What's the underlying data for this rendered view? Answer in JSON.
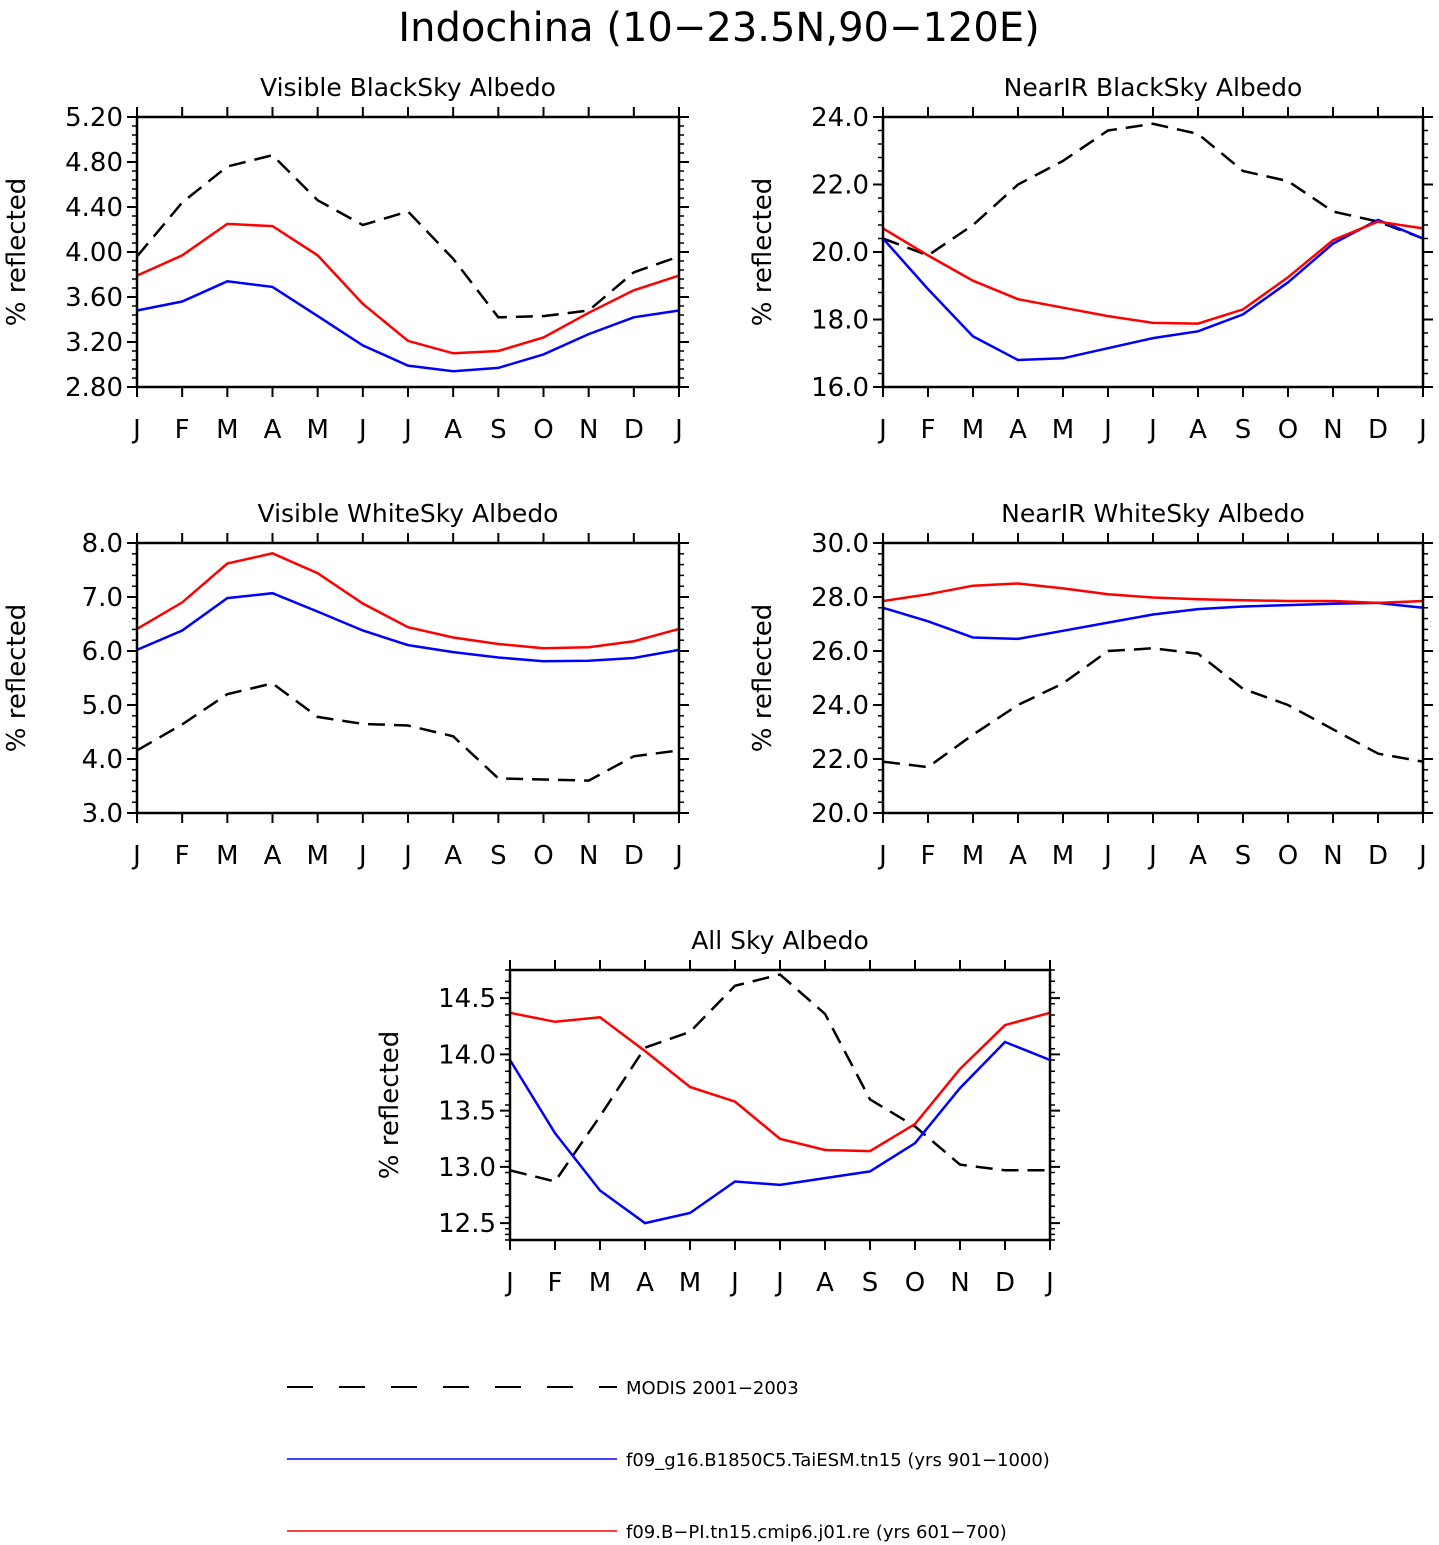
{
  "page_title": "Indochina (10−23.5N,90−120E)",
  "legend": [
    {
      "label": "MODIS 2001−2003",
      "color": "#000000",
      "dash": true
    },
    {
      "label": "f09_g16.B1850C5.TaiESM.tn15 (yrs 901−1000)",
      "color": "#0000ff",
      "dash": false
    },
    {
      "label": "f09.B−PI.tn15.cmip6.j01.re (yrs 601−700)",
      "color": "#ff0000",
      "dash": false
    }
  ],
  "chart_data": [
    {
      "type": "line",
      "title": "Visible BlackSky Albedo",
      "xlabel": "",
      "ylabel": "% reflected",
      "categories": [
        "J",
        "F",
        "M",
        "A",
        "M",
        "J",
        "J",
        "A",
        "S",
        "O",
        "N",
        "D",
        "J"
      ],
      "ylim": [
        2.8,
        5.2
      ],
      "yticks": [
        "2.80",
        "3.20",
        "3.60",
        "4.00",
        "4.40",
        "4.80",
        "5.20"
      ],
      "series": [
        {
          "name": "MODIS 2001−2003",
          "color": "#000000",
          "dash": true,
          "values": [
            3.96,
            4.44,
            4.76,
            4.86,
            4.46,
            4.24,
            4.36,
            3.94,
            3.42,
            3.43,
            3.48,
            3.82,
            3.96
          ]
        },
        {
          "name": "f09_g16.B1850C5.TaiESM.tn15 (yrs 901−1000)",
          "color": "#0000ff",
          "dash": false,
          "values": [
            3.48,
            3.56,
            3.74,
            3.69,
            3.43,
            3.17,
            2.99,
            2.94,
            2.97,
            3.09,
            3.27,
            3.42,
            3.48
          ]
        },
        {
          "name": "f09.B−PI.tn15.cmip6.j01.re (yrs 601−700)",
          "color": "#ff0000",
          "dash": false,
          "values": [
            3.79,
            3.97,
            4.25,
            4.23,
            3.97,
            3.54,
            3.21,
            3.1,
            3.12,
            3.24,
            3.46,
            3.66,
            3.79
          ]
        }
      ]
    },
    {
      "type": "line",
      "title": "NearIR BlackSky Albedo",
      "xlabel": "",
      "ylabel": "% reflected",
      "categories": [
        "J",
        "F",
        "M",
        "A",
        "M",
        "J",
        "J",
        "A",
        "S",
        "O",
        "N",
        "D",
        "J"
      ],
      "ylim": [
        16.0,
        24.0
      ],
      "yticks": [
        "16.0",
        "18.0",
        "20.0",
        "22.0",
        "24.0"
      ],
      "series": [
        {
          "name": "MODIS 2001−2003",
          "color": "#000000",
          "dash": true,
          "values": [
            20.4,
            19.9,
            20.8,
            22.0,
            22.7,
            23.6,
            23.8,
            23.5,
            22.4,
            22.1,
            21.2,
            20.9,
            20.4
          ]
        },
        {
          "name": "f09_g16.B1850C5.TaiESM.tn15 (yrs 901−1000)",
          "color": "#0000ff",
          "dash": false,
          "values": [
            20.4,
            18.9,
            17.5,
            16.8,
            16.85,
            17.15,
            17.45,
            17.65,
            18.15,
            19.1,
            20.25,
            20.95,
            20.4
          ]
        },
        {
          "name": "f09.B−PI.tn15.cmip6.j01.re (yrs 601−700)",
          "color": "#ff0000",
          "dash": false,
          "values": [
            20.7,
            19.9,
            19.15,
            18.6,
            18.35,
            18.1,
            17.9,
            17.88,
            18.3,
            19.25,
            20.35,
            20.9,
            20.7
          ]
        }
      ]
    },
    {
      "type": "line",
      "title": "Visible WhiteSky Albedo",
      "xlabel": "",
      "ylabel": "% reflected",
      "categories": [
        "J",
        "F",
        "M",
        "A",
        "M",
        "J",
        "J",
        "A",
        "S",
        "O",
        "N",
        "D",
        "J"
      ],
      "ylim": [
        3.0,
        8.0
      ],
      "yticks": [
        "3.0",
        "4.0",
        "5.0",
        "6.0",
        "7.0",
        "8.0"
      ],
      "series": [
        {
          "name": "MODIS 2001−2003",
          "color": "#000000",
          "dash": true,
          "values": [
            4.16,
            4.64,
            5.2,
            5.4,
            4.78,
            4.65,
            4.62,
            4.42,
            3.64,
            3.62,
            3.6,
            4.05,
            4.16
          ]
        },
        {
          "name": "f09_g16.B1850C5.TaiESM.tn15 (yrs 901−1000)",
          "color": "#0000ff",
          "dash": false,
          "values": [
            6.02,
            6.38,
            6.98,
            7.07,
            6.73,
            6.38,
            6.11,
            5.98,
            5.88,
            5.81,
            5.82,
            5.87,
            6.02
          ]
        },
        {
          "name": "f09.B−PI.tn15.cmip6.j01.re (yrs 601−700)",
          "color": "#ff0000",
          "dash": false,
          "values": [
            6.41,
            6.9,
            7.62,
            7.81,
            7.44,
            6.88,
            6.44,
            6.25,
            6.13,
            6.05,
            6.07,
            6.18,
            6.41
          ]
        }
      ]
    },
    {
      "type": "line",
      "title": "NearIR WhiteSky Albedo",
      "xlabel": "",
      "ylabel": "% reflected",
      "categories": [
        "J",
        "F",
        "M",
        "A",
        "M",
        "J",
        "J",
        "A",
        "S",
        "O",
        "N",
        "D",
        "J"
      ],
      "ylim": [
        20.0,
        30.0
      ],
      "yticks": [
        "20.0",
        "22.0",
        "24.0",
        "26.0",
        "28.0",
        "30.0"
      ],
      "series": [
        {
          "name": "MODIS 2001−2003",
          "color": "#000000",
          "dash": true,
          "values": [
            21.9,
            21.7,
            22.9,
            24.0,
            24.8,
            26.0,
            26.1,
            25.9,
            24.6,
            24.0,
            23.1,
            22.2,
            21.9
          ]
        },
        {
          "name": "f09_g16.B1850C5.TaiESM.tn15 (yrs 901−1000)",
          "color": "#0000ff",
          "dash": false,
          "values": [
            27.6,
            27.1,
            26.5,
            26.45,
            26.75,
            27.05,
            27.35,
            27.55,
            27.65,
            27.7,
            27.75,
            27.78,
            27.6
          ]
        },
        {
          "name": "f09.B−PI.tn15.cmip6.j01.re (yrs 601−700)",
          "color": "#ff0000",
          "dash": false,
          "values": [
            27.85,
            28.1,
            28.42,
            28.5,
            28.32,
            28.1,
            27.98,
            27.92,
            27.88,
            27.85,
            27.85,
            27.78,
            27.85
          ]
        }
      ]
    },
    {
      "type": "line",
      "title": "All Sky Albedo",
      "xlabel": "",
      "ylabel": "% reflected",
      "categories": [
        "J",
        "F",
        "M",
        "A",
        "M",
        "J",
        "J",
        "A",
        "S",
        "O",
        "N",
        "D",
        "J"
      ],
      "ylim": [
        12.35,
        14.75
      ],
      "yticks": [
        "12.5",
        "13.0",
        "13.5",
        "14.0",
        "14.5"
      ],
      "series": [
        {
          "name": "MODIS 2001−2003",
          "color": "#000000",
          "dash": true,
          "values": [
            12.97,
            12.87,
            13.45,
            14.06,
            14.2,
            14.61,
            14.71,
            14.36,
            13.6,
            13.36,
            13.02,
            12.97,
            12.97
          ]
        },
        {
          "name": "f09_g16.B1850C5.TaiESM.tn15 (yrs 901−1000)",
          "color": "#0000ff",
          "dash": false,
          "values": [
            13.95,
            13.3,
            12.79,
            12.5,
            12.59,
            12.87,
            12.84,
            12.9,
            12.96,
            13.21,
            13.7,
            14.11,
            13.95
          ]
        },
        {
          "name": "f09.B−PI.tn15.cmip6.j01.re (yrs 601−700)",
          "color": "#ff0000",
          "dash": false,
          "values": [
            14.37,
            14.29,
            14.33,
            14.03,
            13.71,
            13.58,
            13.25,
            13.15,
            13.14,
            13.38,
            13.87,
            14.26,
            14.37
          ]
        }
      ]
    }
  ]
}
